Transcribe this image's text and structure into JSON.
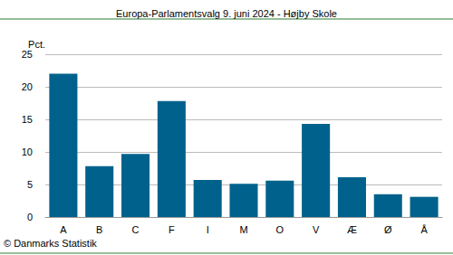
{
  "chart_data": {
    "type": "bar",
    "title": "Europa-Parlamentsvalg 9. juni 2024 - Højby Skole",
    "y_label": "Pct.",
    "source": "© Danmarks Statistik",
    "categories": [
      "A",
      "B",
      "C",
      "F",
      "I",
      "M",
      "O",
      "V",
      "Æ",
      "Ø",
      "Å"
    ],
    "values": [
      22.0,
      7.8,
      9.7,
      17.8,
      5.7,
      5.1,
      5.6,
      14.3,
      6.1,
      3.5,
      3.1
    ],
    "color": "#00628c",
    "ylim": [
      0,
      25
    ],
    "yticks": [
      0,
      5,
      10,
      15,
      20,
      25
    ],
    "grid": true
  }
}
